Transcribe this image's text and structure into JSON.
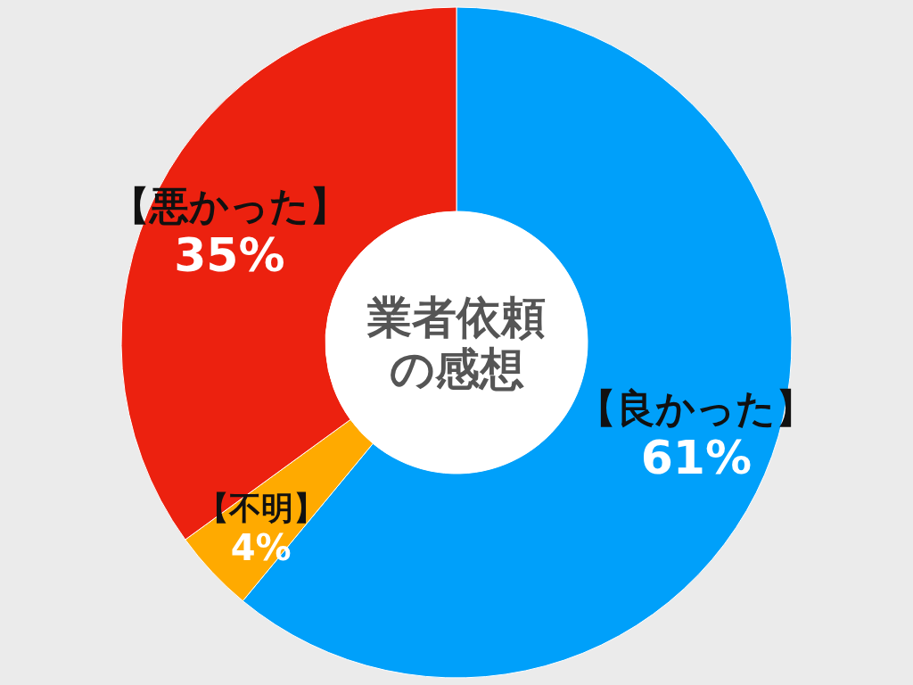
{
  "chart_data": {
    "type": "donut",
    "title": "業者依頼の感想",
    "categories": [
      "【良かった】",
      "【不明】",
      "【悪かった】"
    ],
    "values": [
      61,
      4,
      35
    ],
    "colors": [
      "#00a0fa",
      "#ffaa00",
      "#ec210f"
    ],
    "value_labels": [
      "61%",
      "4%",
      "35%"
    ]
  }
}
